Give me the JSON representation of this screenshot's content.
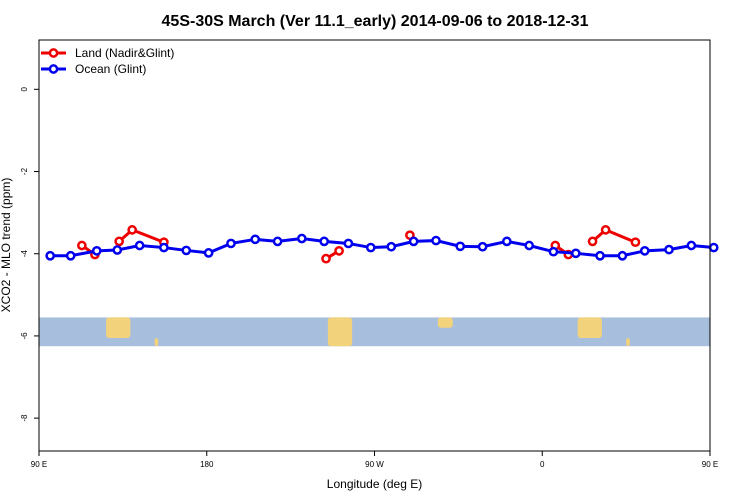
{
  "chart_data": {
    "type": "line",
    "title": "45S-30S March (Ver 11.1_early)   2014-09-06 to 2018-12-31",
    "xlabel": "Longitude (deg E)",
    "ylabel": "XCO2 - MLO trend (ppm)",
    "xlim": [
      90,
      450
    ],
    "ylim": [
      -8.8,
      1.2
    ],
    "x_ticks": [
      {
        "value": 90,
        "label": "90 E"
      },
      {
        "value": 180,
        "label": "180"
      },
      {
        "value": 270,
        "label": "90 W"
      },
      {
        "value": 360,
        "label": "0"
      },
      {
        "value": 450,
        "label": "90 E"
      },
      {
        "value": 540,
        "label": "180"
      }
    ],
    "y_ticks": [
      {
        "value": 0,
        "label": "0"
      },
      {
        "value": -2,
        "label": "-2"
      },
      {
        "value": -4,
        "label": "-4"
      },
      {
        "value": -6,
        "label": "-6"
      },
      {
        "value": -8,
        "label": "-8"
      }
    ],
    "legend_position": "top-left",
    "grid": false,
    "series": [
      {
        "name": "Land (Nadir&Glint)",
        "color": "#ee0000",
        "segments": [
          [
            [
              113,
              -3.8
            ],
            [
              120,
              -4.02
            ]
          ],
          [
            [
              133,
              -3.7
            ],
            [
              140,
              -3.42
            ],
            [
              157,
              -3.72
            ]
          ],
          [
            [
              244,
              -4.12
            ],
            [
              251,
              -3.93
            ]
          ],
          [
            [
              289,
              -3.55
            ]
          ],
          [
            [
              367,
              -3.8
            ],
            [
              374,
              -4.02
            ]
          ],
          [
            [
              387,
              -3.7
            ],
            [
              394,
              -3.42
            ],
            [
              410,
              -3.72
            ]
          ]
        ]
      },
      {
        "name": "Ocean (Glint)",
        "color": "#0000ee",
        "segments": [
          [
            [
              96,
              -4.05
            ],
            [
              107,
              -4.05
            ],
            [
              121,
              -3.93
            ],
            [
              132,
              -3.91
            ],
            [
              144,
              -3.8
            ],
            [
              157,
              -3.85
            ],
            [
              169,
              -3.92
            ],
            [
              181,
              -3.98
            ],
            [
              193,
              -3.75
            ],
            [
              206,
              -3.65
            ],
            [
              218,
              -3.7
            ],
            [
              231,
              -3.63
            ],
            [
              243,
              -3.7
            ],
            [
              256,
              -3.75
            ],
            [
              268,
              -3.85
            ],
            [
              279,
              -3.83
            ],
            [
              291,
              -3.7
            ],
            [
              303,
              -3.68
            ],
            [
              316,
              -3.82
            ],
            [
              328,
              -3.83
            ],
            [
              341,
              -3.7
            ],
            [
              353,
              -3.8
            ],
            [
              366,
              -3.95
            ],
            [
              378,
              -3.99
            ],
            [
              391,
              -4.05
            ],
            [
              403,
              -4.05
            ],
            [
              415,
              -3.93
            ],
            [
              428,
              -3.9
            ],
            [
              440,
              -3.8
            ],
            [
              452,
              -3.85
            ]
          ]
        ]
      }
    ],
    "map_strip": {
      "y_range": [
        -5.55,
        -6.25
      ],
      "ocean_color": "#a8bedd",
      "land_color": "#f2d37c",
      "land_patches": [
        {
          "x": [
            126,
            139
          ],
          "y": [
            -5.55,
            -6.05
          ]
        },
        {
          "x": [
            152,
            154
          ],
          "y": [
            -6.05,
            -6.25
          ]
        },
        {
          "x": [
            245,
            258
          ],
          "y": [
            -5.55,
            -6.25
          ]
        },
        {
          "x": [
            304,
            312
          ],
          "y": [
            -5.55,
            -5.8
          ]
        },
        {
          "x": [
            379,
            392
          ],
          "y": [
            -5.55,
            -6.05
          ]
        },
        {
          "x": [
            405,
            407
          ],
          "y": [
            -6.05,
            -6.25
          ]
        }
      ]
    }
  }
}
